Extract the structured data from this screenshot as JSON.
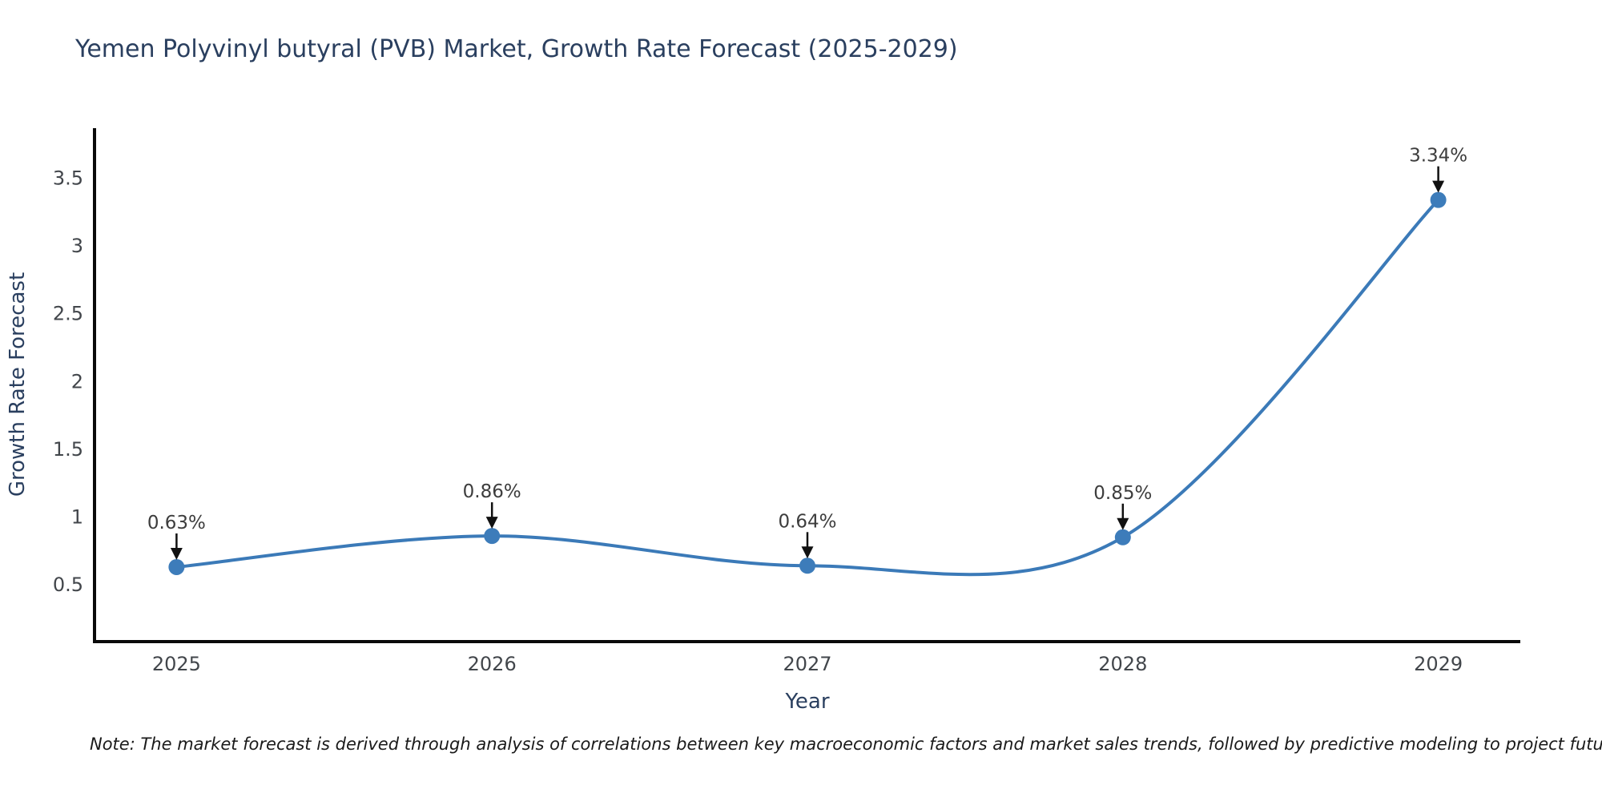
{
  "note": {
    "text": "Note: The market forecast is derived through analysis of correlations between key macroeconomic factors and market sales trends, followed by predictive modeling to project future sales"
  },
  "chart_data": {
    "type": "line",
    "line_shape": "spline",
    "markers": true,
    "grid": false,
    "legend_position": "none",
    "title": "Yemen Polyvinyl butyral (PVB) Market, Growth Rate Forecast (2025-2029)",
    "xlabel": "Year",
    "ylabel": "Growth Rate Forecast",
    "x": [
      2025,
      2026,
      2027,
      2028,
      2029
    ],
    "series": [
      {
        "name": "Growth Rate Forecast",
        "values": [
          0.63,
          0.86,
          0.64,
          0.85,
          3.34
        ]
      }
    ],
    "point_labels": [
      "0.63%",
      "0.86%",
      "0.64%",
      "0.85%",
      "3.34%"
    ],
    "x_tick_labels": [
      "2025",
      "2026",
      "2027",
      "2028",
      "2029"
    ],
    "y_tick_labels": [
      "0.5",
      "1",
      "1.5",
      "2",
      "2.5",
      "3",
      "3.5"
    ],
    "y_tick_values": [
      0.5,
      1,
      1.5,
      2,
      2.5,
      3,
      3.5
    ],
    "xlim": [
      2024.74,
      2029.26
    ],
    "ylim": [
      0.08,
      3.87
    ],
    "colors": {
      "line": "#3b7ab8",
      "marker": "#3d7cba",
      "axis": "#0a0a0a",
      "arrow": "#111111",
      "title_text": "#2a3f5f",
      "tick_text": "#42464b",
      "annotation_text": "#3d3d3d",
      "note_text": "#1a1a1a",
      "background": "#ffffff"
    }
  }
}
